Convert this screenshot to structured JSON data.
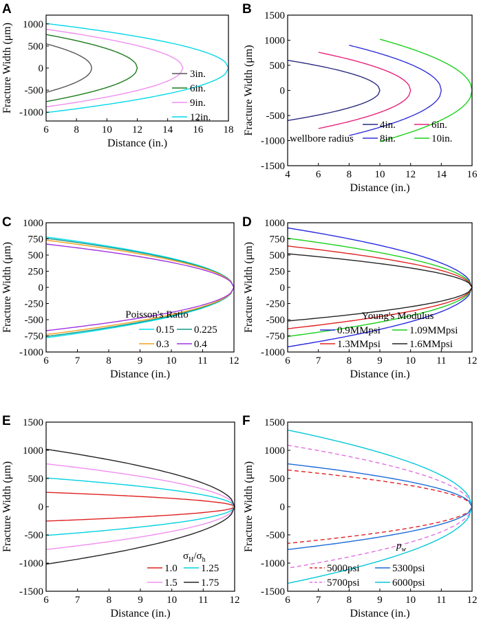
{
  "chart_data": [
    {
      "panel": "A",
      "type": "line",
      "xlabel": "Distance (in.)",
      "ylabel": "Fracture Width (μm)",
      "xlim": [
        6,
        18
      ],
      "ylim": [
        -1200,
        1200
      ],
      "xticks": [
        6,
        8,
        10,
        12,
        14,
        16,
        18
      ],
      "yticks": [
        -1000,
        -500,
        0,
        500,
        1000
      ],
      "legend_title": "",
      "legend_position": "bottom-right",
      "series": [
        {
          "name": "3in.",
          "color": "#555555",
          "dash": "",
          "tip_x": 9,
          "x_start": 6,
          "w_at_start": 550
        },
        {
          "name": "6in.",
          "color": "#1a7a1a",
          "dash": "",
          "tip_x": 12,
          "x_start": 6,
          "w_at_start": 760
        },
        {
          "name": "9in.",
          "color": "#f08ef0",
          "dash": "",
          "tip_x": 15,
          "x_start": 6,
          "w_at_start": 880
        },
        {
          "name": "12in.",
          "color": "#00d8e8",
          "dash": "",
          "tip_x": 18,
          "x_start": 6,
          "w_at_start": 1010
        }
      ]
    },
    {
      "panel": "B",
      "type": "line",
      "xlabel": "Distance (in.)",
      "ylabel": "Fracture Width (μm)",
      "xlim": [
        4,
        16
      ],
      "ylim": [
        -1500,
        1500
      ],
      "xticks": [
        4,
        6,
        8,
        10,
        12,
        14,
        16
      ],
      "yticks": [
        -1500,
        -1000,
        -500,
        0,
        500,
        1000,
        1500
      ],
      "legend_title": "wellbore radius",
      "legend_position": "bottom-right",
      "series": [
        {
          "name": "4in.",
          "color": "#2a2a80",
          "dash": "",
          "tip_x": 10,
          "x_start": 4,
          "w_at_start": 600
        },
        {
          "name": "6in.",
          "color": "#e8227a",
          "dash": "",
          "tip_x": 12,
          "x_start": 6,
          "w_at_start": 760
        },
        {
          "name": "8in.",
          "color": "#3030d8",
          "dash": "",
          "tip_x": 14,
          "x_start": 8,
          "w_at_start": 900
        },
        {
          "name": "10in.",
          "color": "#18d018",
          "dash": "",
          "tip_x": 16,
          "x_start": 10,
          "w_at_start": 1020
        }
      ]
    },
    {
      "panel": "C",
      "type": "line",
      "xlabel": "Distance (in.)",
      "ylabel": "Fracture Width (μm)",
      "xlim": [
        6,
        12
      ],
      "ylim": [
        -1000,
        1000
      ],
      "xticks": [
        6,
        7,
        8,
        9,
        10,
        11,
        12
      ],
      "yticks": [
        -1000,
        -750,
        -500,
        -250,
        0,
        250,
        500,
        750,
        1000
      ],
      "legend_title": "Poisson's Ratio",
      "legend_position": "bottom-right",
      "series": [
        {
          "name": "0.15",
          "color": "#00e0f0",
          "dash": "",
          "tip_x": 12,
          "x_start": 6,
          "w_at_start": 780
        },
        {
          "name": "0.225",
          "color": "#139a8a",
          "dash": "",
          "tip_x": 12,
          "x_start": 6,
          "w_at_start": 760
        },
        {
          "name": "0.3",
          "color": "#f0a020",
          "dash": "",
          "tip_x": 12,
          "x_start": 6,
          "w_at_start": 730
        },
        {
          "name": "0.4",
          "color": "#a030e0",
          "dash": "",
          "tip_x": 12,
          "x_start": 6,
          "w_at_start": 670
        }
      ]
    },
    {
      "panel": "D",
      "type": "line",
      "xlabel": "Distance (in.)",
      "ylabel": "Fracture Width (μm)",
      "xlim": [
        6,
        12
      ],
      "ylim": [
        -1000,
        1000
      ],
      "xticks": [
        6,
        7,
        8,
        9,
        10,
        11,
        12
      ],
      "yticks": [
        -1000,
        -750,
        -500,
        -250,
        0,
        250,
        500,
        750,
        1000
      ],
      "legend_title": "Young's Modulus",
      "legend_position": "bottom-right",
      "series": [
        {
          "name": "0.9MMpsi",
          "color": "#2828e0",
          "dash": "",
          "tip_x": 12,
          "x_start": 6,
          "w_at_start": 920
        },
        {
          "name": "1.09MMpsi",
          "color": "#18d018",
          "dash": "",
          "tip_x": 12,
          "x_start": 6,
          "w_at_start": 760
        },
        {
          "name": "1.3MMpsi",
          "color": "#e02020",
          "dash": "",
          "tip_x": 12,
          "x_start": 6,
          "w_at_start": 640
        },
        {
          "name": "1.6MMpsi",
          "color": "#222222",
          "dash": "",
          "tip_x": 12,
          "x_start": 6,
          "w_at_start": 520
        }
      ]
    },
    {
      "panel": "E",
      "type": "line",
      "xlabel": "Distance (in.)",
      "ylabel": "Fracture Width (μm)",
      "xlim": [
        6,
        12
      ],
      "ylim": [
        -1500,
        1500
      ],
      "xticks": [
        6,
        7,
        8,
        9,
        10,
        11,
        12
      ],
      "yticks": [
        -1500,
        -1000,
        -500,
        0,
        500,
        1000,
        1500
      ],
      "legend_title": "σH/σh",
      "legend_position": "bottom-right",
      "series": [
        {
          "name": "1.0",
          "color": "#e02020",
          "dash": "",
          "tip_x": 12,
          "x_start": 6,
          "w_at_start": 255
        },
        {
          "name": "1.25",
          "color": "#00d0e0",
          "dash": "",
          "tip_x": 12,
          "x_start": 6,
          "w_at_start": 510
        },
        {
          "name": "1.5",
          "color": "#f08ef0",
          "dash": "",
          "tip_x": 12,
          "x_start": 6,
          "w_at_start": 760
        },
        {
          "name": "1.75",
          "color": "#222222",
          "dash": "",
          "tip_x": 12,
          "x_start": 6,
          "w_at_start": 1020
        }
      ]
    },
    {
      "panel": "F",
      "type": "line",
      "xlabel": "Distance (in.)",
      "ylabel": "Fracture Width (μm)",
      "xlim": [
        6,
        12
      ],
      "ylim": [
        -1500,
        1500
      ],
      "xticks": [
        6,
        7,
        8,
        9,
        10,
        11,
        12
      ],
      "yticks": [
        -1500,
        -1000,
        -500,
        0,
        500,
        1000,
        1500
      ],
      "legend_title": "pw",
      "legend_position": "bottom-right",
      "series": [
        {
          "name": "5000psi",
          "color": "#e02020",
          "dash": "6,4",
          "tip_x": 12,
          "x_start": 6,
          "w_at_start": 650
        },
        {
          "name": "5300psi",
          "color": "#1a6ad8",
          "dash": "",
          "tip_x": 12,
          "x_start": 6,
          "w_at_start": 760
        },
        {
          "name": "5700psi",
          "color": "#e070e0",
          "dash": "6,4",
          "tip_x": 12,
          "x_start": 6,
          "w_at_start": 1090
        },
        {
          "name": "6000psi",
          "color": "#00c8d8",
          "dash": "",
          "tip_x": 12,
          "x_start": 6,
          "w_at_start": 1360
        }
      ]
    }
  ]
}
